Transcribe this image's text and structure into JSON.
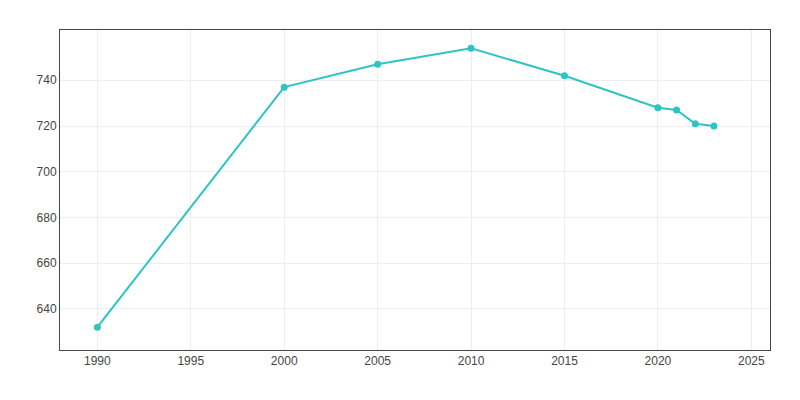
{
  "chart_data": {
    "type": "line",
    "x": [
      1990,
      2000,
      2005,
      2010,
      2015,
      2020,
      2021,
      2022,
      2023
    ],
    "values": [
      632,
      737,
      747,
      754,
      742,
      728,
      727,
      721,
      720
    ],
    "color": "#2EC4C4",
    "marker": "circle",
    "line_style": "solid",
    "xlim": [
      1988,
      2026
    ],
    "ylim": [
      622,
      762
    ],
    "xticks": [
      1990,
      1995,
      2000,
      2005,
      2010,
      2015,
      2020,
      2025
    ],
    "yticks": [
      640,
      660,
      680,
      700,
      720,
      740
    ],
    "grid": true
  }
}
